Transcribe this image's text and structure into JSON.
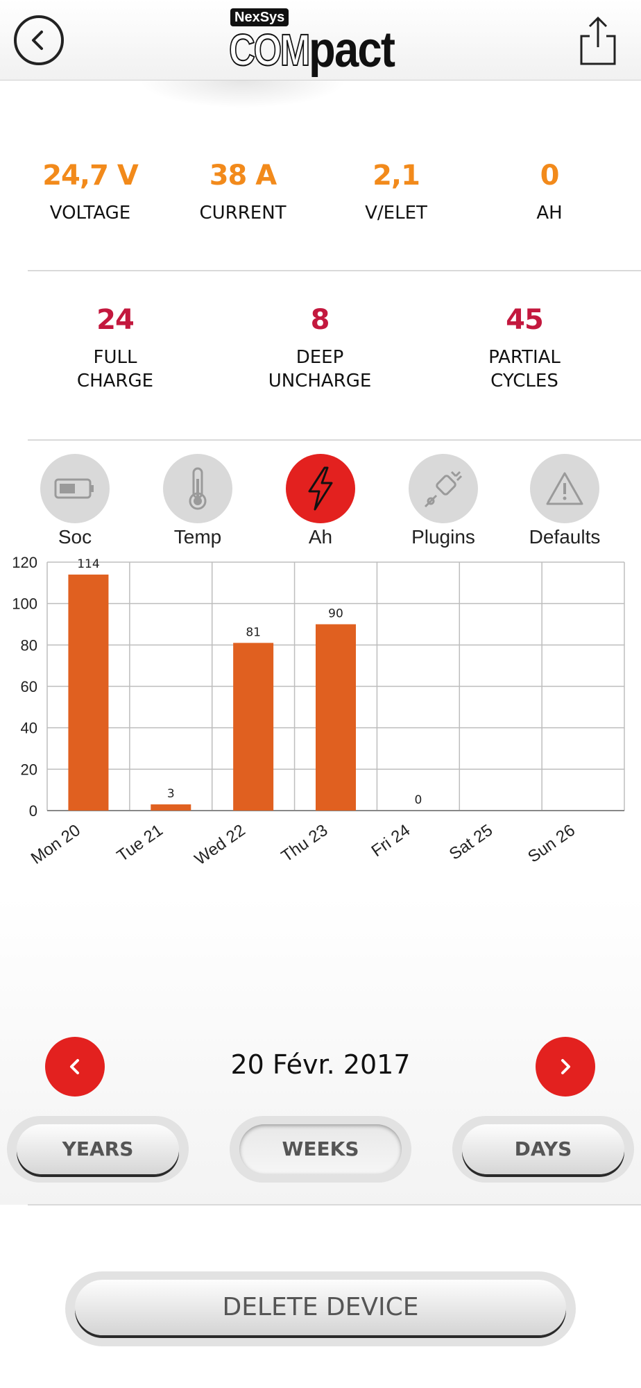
{
  "header": {
    "logo_top": "NexSys",
    "logo_com": "COM",
    "logo_pact": "pact"
  },
  "stats_row1": [
    {
      "value": "24,7 V",
      "label": "VOLTAGE"
    },
    {
      "value": "38 A",
      "label": "CURRENT"
    },
    {
      "value": "2,1",
      "label": "V/ELET"
    },
    {
      "value": "0",
      "label": "AH"
    }
  ],
  "stats_row2": [
    {
      "value": "24",
      "label_line1": "FULL",
      "label_line2": "CHARGE"
    },
    {
      "value": "8",
      "label_line1": "DEEP",
      "label_line2": "UNCHARGE"
    },
    {
      "value": "45",
      "label_line1": "PARTIAL",
      "label_line2": "CYCLES"
    }
  ],
  "tabs": [
    {
      "label": "Soc",
      "icon": "battery-icon",
      "active": false
    },
    {
      "label": "Temp",
      "icon": "thermometer-icon",
      "active": false
    },
    {
      "label": "Ah",
      "icon": "lightning-icon",
      "active": true
    },
    {
      "label": "Plugins",
      "icon": "plug-icon",
      "active": false
    },
    {
      "label": "Defaults",
      "icon": "warning-icon",
      "active": false
    }
  ],
  "chart_data": {
    "type": "bar",
    "categories": [
      "Mon 20",
      "Tue 21",
      "Wed 22",
      "Thu 23",
      "Fri 24",
      "Sat 25",
      "Sun 26"
    ],
    "series": [
      {
        "name": "AH",
        "values": [
          114,
          3,
          81,
          90,
          0,
          null,
          null
        ],
        "color": "#e06020"
      }
    ],
    "data_labels": [
      "114",
      "3",
      "81",
      "90",
      "0",
      "",
      ""
    ],
    "y_ticks": [
      "0",
      "20",
      "40",
      "60",
      "80",
      "100",
      "120"
    ],
    "ylim": [
      0,
      120
    ],
    "grid": true,
    "legend_position": "bottom-left"
  },
  "date_nav": {
    "current_date": "20 Févr. 2017"
  },
  "period_buttons": {
    "years": "YEARS",
    "weeks": "WEEKS",
    "days": "DAYS"
  },
  "delete_button": "DELETE DEVICE",
  "colors": {
    "accent_red": "#e3211f",
    "value_orange": "#f28a1b",
    "value_crimson": "#c3183e",
    "bar_orange": "#e06020"
  }
}
